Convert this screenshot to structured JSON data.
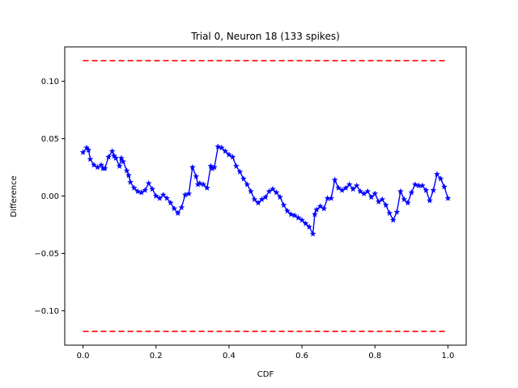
{
  "chart_data": {
    "type": "line",
    "title": "Trial 0, Neuron 18 (133 spikes)",
    "xlabel": "CDF",
    "ylabel": "Difference",
    "xlim": [
      -0.05,
      1.05
    ],
    "ylim": [
      -0.13,
      0.13
    ],
    "xticks": [
      0.0,
      0.2,
      0.4,
      0.6,
      0.8,
      1.0
    ],
    "xtick_labels": [
      "0.0",
      "0.2",
      "0.4",
      "0.6",
      "0.8",
      "1.0"
    ],
    "yticks": [
      0.1,
      0.05,
      0.0,
      -0.05,
      -0.1
    ],
    "ytick_labels": [
      "0.10",
      "0.05",
      "0.00",
      "−0.05",
      "−0.10"
    ],
    "grid": false,
    "series": [
      {
        "color": "#0000ff",
        "marker": "star",
        "x": [
          0.0,
          0.01,
          0.015,
          0.02,
          0.03,
          0.04,
          0.05,
          0.055,
          0.06,
          0.07,
          0.08,
          0.085,
          0.09,
          0.1,
          0.105,
          0.11,
          0.12,
          0.125,
          0.13,
          0.14,
          0.15,
          0.16,
          0.17,
          0.18,
          0.19,
          0.2,
          0.21,
          0.22,
          0.23,
          0.24,
          0.25,
          0.26,
          0.27,
          0.28,
          0.29,
          0.3,
          0.31,
          0.315,
          0.32,
          0.33,
          0.34,
          0.35,
          0.355,
          0.36,
          0.37,
          0.38,
          0.39,
          0.4,
          0.41,
          0.42,
          0.43,
          0.44,
          0.45,
          0.46,
          0.47,
          0.48,
          0.49,
          0.5,
          0.51,
          0.52,
          0.53,
          0.54,
          0.55,
          0.56,
          0.57,
          0.58,
          0.59,
          0.6,
          0.61,
          0.62,
          0.63,
          0.635,
          0.64,
          0.65,
          0.66,
          0.67,
          0.68,
          0.69,
          0.7,
          0.71,
          0.72,
          0.73,
          0.74,
          0.75,
          0.76,
          0.77,
          0.78,
          0.79,
          0.8,
          0.81,
          0.82,
          0.83,
          0.84,
          0.85,
          0.86,
          0.87,
          0.88,
          0.89,
          0.9,
          0.91,
          0.92,
          0.93,
          0.94,
          0.95,
          0.96,
          0.97,
          0.98,
          0.99,
          1.0
        ],
        "y": [
          0.038,
          0.042,
          0.04,
          0.032,
          0.027,
          0.025,
          0.027,
          0.024,
          0.024,
          0.034,
          0.039,
          0.035,
          0.033,
          0.026,
          0.033,
          0.03,
          0.022,
          0.018,
          0.012,
          0.007,
          0.004,
          0.003,
          0.005,
          0.011,
          0.006,
          0.0,
          -0.002,
          0.001,
          -0.002,
          -0.006,
          -0.011,
          -0.015,
          -0.01,
          0.001,
          0.002,
          0.025,
          0.017,
          0.01,
          0.011,
          0.01,
          0.007,
          0.026,
          0.024,
          0.025,
          0.043,
          0.042,
          0.039,
          0.036,
          0.034,
          0.026,
          0.021,
          0.015,
          0.01,
          0.004,
          -0.003,
          -0.006,
          -0.003,
          -0.001,
          0.004,
          0.006,
          0.003,
          -0.001,
          -0.008,
          -0.013,
          -0.016,
          -0.017,
          -0.019,
          -0.021,
          -0.024,
          -0.027,
          -0.033,
          -0.016,
          -0.012,
          -0.009,
          -0.011,
          -0.002,
          -0.002,
          0.014,
          0.007,
          0.005,
          0.007,
          0.01,
          0.006,
          0.009,
          0.004,
          0.002,
          0.004,
          -0.001,
          0.002,
          -0.005,
          -0.003,
          -0.008,
          -0.015,
          -0.021,
          -0.014,
          0.004,
          -0.003,
          -0.006,
          0.003,
          0.01,
          0.009,
          0.009,
          0.005,
          -0.004,
          0.005,
          0.019,
          0.015,
          0.008,
          -0.002
        ]
      },
      {
        "color": "#ff0000",
        "style": "dashed",
        "x": [
          0.0,
          1.0
        ],
        "y": [
          0.118,
          0.118
        ]
      },
      {
        "color": "#ff0000",
        "style": "dashed",
        "x": [
          0.0,
          1.0
        ],
        "y": [
          -0.118,
          -0.118
        ]
      }
    ]
  }
}
